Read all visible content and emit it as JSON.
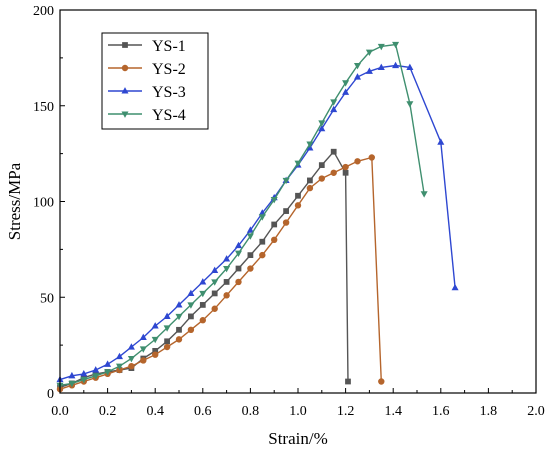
{
  "chart_data": {
    "type": "line",
    "title": "",
    "xlabel": "Strain/%",
    "ylabel": "Stress/MPa",
    "xlim": [
      0.0,
      2.0
    ],
    "ylim": [
      0,
      200
    ],
    "x_ticks": [
      "0.0",
      "0.2",
      "0.4",
      "0.6",
      "0.8",
      "1.0",
      "1.2",
      "1.4",
      "1.6",
      "1.8",
      "2.0"
    ],
    "y_ticks": [
      "0",
      "50",
      "100",
      "150",
      "200"
    ],
    "grid": false,
    "legend_position": "top-left",
    "series": [
      {
        "name": "YS-1",
        "color": "#555555",
        "marker": "square",
        "points": [
          [
            0.0,
            3
          ],
          [
            0.05,
            5
          ],
          [
            0.1,
            8
          ],
          [
            0.15,
            10
          ],
          [
            0.2,
            11
          ],
          [
            0.25,
            12
          ],
          [
            0.3,
            13
          ],
          [
            0.35,
            18
          ],
          [
            0.4,
            22
          ],
          [
            0.45,
            27
          ],
          [
            0.5,
            33
          ],
          [
            0.55,
            40
          ],
          [
            0.6,
            46
          ],
          [
            0.65,
            52
          ],
          [
            0.7,
            58
          ],
          [
            0.75,
            65
          ],
          [
            0.8,
            72
          ],
          [
            0.85,
            79
          ],
          [
            0.9,
            88
          ],
          [
            0.95,
            95
          ],
          [
            1.0,
            103
          ],
          [
            1.05,
            111
          ],
          [
            1.1,
            119
          ],
          [
            1.15,
            126
          ],
          [
            1.2,
            115
          ],
          [
            1.21,
            6
          ]
        ]
      },
      {
        "name": "YS-2",
        "color": "#b5652c",
        "marker": "circle",
        "points": [
          [
            0.0,
            2
          ],
          [
            0.05,
            4
          ],
          [
            0.1,
            6
          ],
          [
            0.15,
            8
          ],
          [
            0.2,
            10
          ],
          [
            0.25,
            12
          ],
          [
            0.3,
            14
          ],
          [
            0.35,
            17
          ],
          [
            0.4,
            20
          ],
          [
            0.45,
            24
          ],
          [
            0.5,
            28
          ],
          [
            0.55,
            33
          ],
          [
            0.6,
            38
          ],
          [
            0.65,
            44
          ],
          [
            0.7,
            51
          ],
          [
            0.75,
            58
          ],
          [
            0.8,
            65
          ],
          [
            0.85,
            72
          ],
          [
            0.9,
            80
          ],
          [
            0.95,
            89
          ],
          [
            1.0,
            98
          ],
          [
            1.05,
            107
          ],
          [
            1.1,
            112
          ],
          [
            1.15,
            115
          ],
          [
            1.2,
            118
          ],
          [
            1.25,
            121
          ],
          [
            1.31,
            123
          ],
          [
            1.35,
            6
          ]
        ]
      },
      {
        "name": "YS-3",
        "color": "#2e47d1",
        "marker": "triangle-up",
        "points": [
          [
            0.0,
            7
          ],
          [
            0.05,
            9
          ],
          [
            0.1,
            10
          ],
          [
            0.15,
            12
          ],
          [
            0.2,
            15
          ],
          [
            0.25,
            19
          ],
          [
            0.3,
            24
          ],
          [
            0.35,
            29
          ],
          [
            0.4,
            35
          ],
          [
            0.45,
            40
          ],
          [
            0.5,
            46
          ],
          [
            0.55,
            52
          ],
          [
            0.6,
            58
          ],
          [
            0.65,
            64
          ],
          [
            0.7,
            70
          ],
          [
            0.75,
            77
          ],
          [
            0.8,
            85
          ],
          [
            0.85,
            94
          ],
          [
            0.9,
            102
          ],
          [
            0.95,
            111
          ],
          [
            1.0,
            119
          ],
          [
            1.05,
            128
          ],
          [
            1.1,
            138
          ],
          [
            1.15,
            148
          ],
          [
            1.2,
            157
          ],
          [
            1.25,
            165
          ],
          [
            1.3,
            168
          ],
          [
            1.35,
            170
          ],
          [
            1.41,
            171
          ],
          [
            1.47,
            170
          ],
          [
            1.6,
            131
          ],
          [
            1.66,
            55
          ]
        ]
      },
      {
        "name": "YS-4",
        "color": "#3f8f6f",
        "marker": "triangle-down",
        "points": [
          [
            0.0,
            4
          ],
          [
            0.05,
            5
          ],
          [
            0.1,
            7
          ],
          [
            0.15,
            9
          ],
          [
            0.2,
            11
          ],
          [
            0.25,
            14
          ],
          [
            0.3,
            18
          ],
          [
            0.35,
            23
          ],
          [
            0.4,
            28
          ],
          [
            0.45,
            34
          ],
          [
            0.5,
            40
          ],
          [
            0.55,
            46
          ],
          [
            0.6,
            52
          ],
          [
            0.65,
            58
          ],
          [
            0.7,
            65
          ],
          [
            0.75,
            73
          ],
          [
            0.8,
            82
          ],
          [
            0.85,
            92
          ],
          [
            0.9,
            101
          ],
          [
            0.95,
            111
          ],
          [
            1.0,
            120
          ],
          [
            1.05,
            130
          ],
          [
            1.1,
            141
          ],
          [
            1.15,
            152
          ],
          [
            1.2,
            162
          ],
          [
            1.25,
            171
          ],
          [
            1.3,
            178
          ],
          [
            1.35,
            181
          ],
          [
            1.41,
            182
          ],
          [
            1.47,
            151
          ],
          [
            1.53,
            104
          ]
        ]
      }
    ]
  }
}
